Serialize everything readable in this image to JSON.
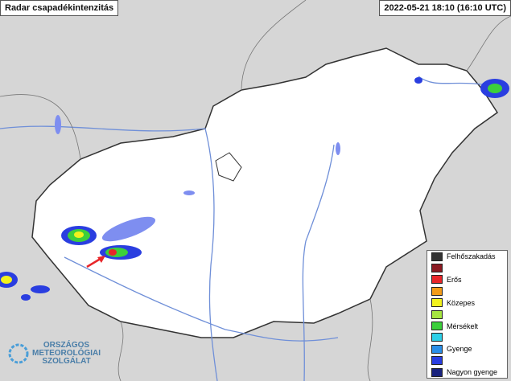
{
  "header": {
    "title": "Radar csapadékintenzitás",
    "timestamp": "2022-05-21 18:10 (16:10 UTC)"
  },
  "legend": {
    "items": [
      {
        "label": "Felhőszakadás",
        "color": "#333333"
      },
      {
        "color": "#8b1a22"
      },
      {
        "label": "Erős",
        "color": "#e8262a"
      },
      {
        "color": "#f39c1a"
      },
      {
        "label": "Közepes",
        "color": "#f2f21c"
      },
      {
        "color": "#a6e640"
      },
      {
        "label": "Mérsékelt",
        "color": "#3ccf3c"
      },
      {
        "color": "#2ed0e8"
      },
      {
        "label": "Gyenge",
        "color": "#2b8fe8"
      },
      {
        "color": "#2a3ee0"
      },
      {
        "label": "Nagyon gyenge",
        "color": "#1a237e"
      }
    ]
  },
  "logo": {
    "lines": [
      "ORSZÁGOS",
      "METEOROLÓGIAI",
      "SZOLGÁLAT"
    ]
  }
}
